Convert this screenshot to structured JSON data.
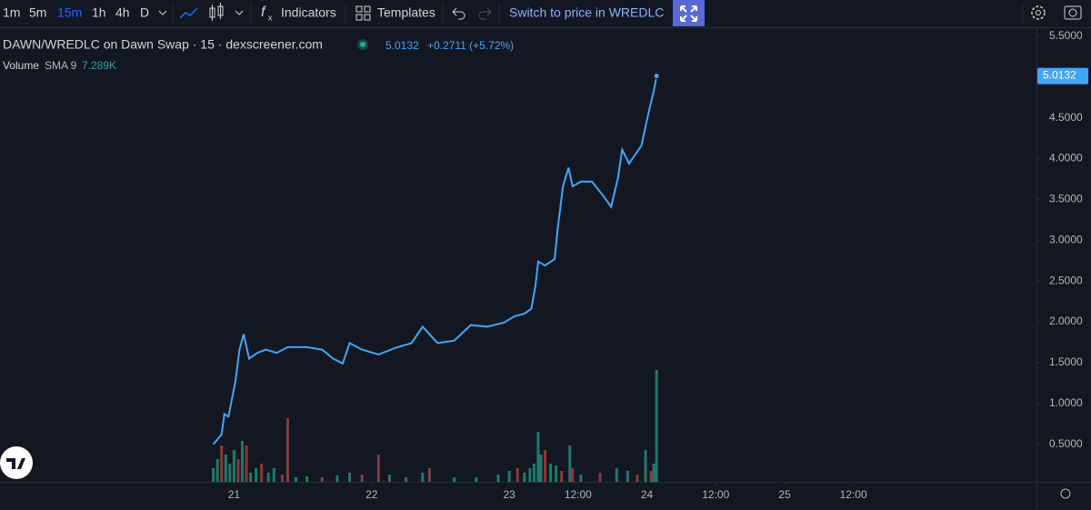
{
  "toolbar": {
    "intervals": [
      "1m",
      "5m",
      "15m",
      "1h",
      "4h",
      "D"
    ],
    "indicators": "Indicators",
    "templates": "Templates",
    "switch": "Switch to price in WREDLC"
  },
  "chart_data": {
    "type": "line",
    "title": "DAWN/WREDLC on Dawn Swap · 15 · dexscreener.com",
    "change": "+0.2711 (+5.72%)",
    "volume_indicator": "SMA 9",
    "volume_sma_label": "7.289K",
    "xlim": [
      19.3,
      26.83
    ],
    "xticks": [
      21,
      22,
      23,
      {
        "value": 23.5,
        "label": "12:00"
      },
      24,
      {
        "value": 24.5,
        "label": "12:00"
      },
      25,
      {
        "value": 25.5,
        "label": "12:00"
      }
    ],
    "ylim": [
      0.04,
      5.61
    ],
    "yticks": [
      {
        "value": 0.5,
        "label": "0.5000"
      },
      {
        "value": 1,
        "label": "1.0000"
      },
      {
        "value": 1.5,
        "label": "1.5000"
      },
      {
        "value": 2,
        "label": "2.0000"
      },
      {
        "value": 2.5,
        "label": "2.5000"
      },
      {
        "value": 3,
        "label": "3.0000"
      },
      {
        "value": 3.5,
        "label": "3.5000"
      },
      {
        "value": 4,
        "label": "4.0000"
      },
      {
        "value": 4.5,
        "label": "4.5000"
      },
      {
        "value": 5,
        "label": "5.0000"
      },
      {
        "value": 5.5,
        "label": "5.5000"
      }
    ],
    "y2lim": [
      0,
      120
    ],
    "grid": false,
    "series": [
      {
        "color": "#42a5f5",
        "x": [
          20.85,
          20.91,
          20.93,
          20.96,
          21.01,
          21.04,
          21.07,
          21.11,
          21.17,
          21.23,
          21.31,
          21.39,
          21.53,
          21.64,
          21.72,
          21.79,
          21.84,
          21.93,
          22.05,
          22.17,
          22.29,
          22.37,
          22.48,
          22.6,
          22.72,
          22.84,
          22.96,
          23.04,
          23.11,
          23.16,
          23.19,
          23.21,
          23.26,
          23.33,
          23.35,
          23.39,
          23.43,
          23.46,
          23.52,
          23.6,
          23.68,
          23.74,
          23.79,
          23.82,
          23.87,
          23.96,
          24.01,
          24.05,
          24.07
        ],
        "values": [
          0.5,
          0.62,
          0.87,
          0.84,
          1.27,
          1.66,
          1.85,
          1.55,
          1.62,
          1.66,
          1.62,
          1.69,
          1.69,
          1.66,
          1.55,
          1.49,
          1.74,
          1.66,
          1.6,
          1.68,
          1.74,
          1.94,
          1.74,
          1.77,
          1.96,
          1.94,
          1.99,
          2.07,
          2.1,
          2.16,
          2.44,
          2.74,
          2.69,
          2.77,
          3.11,
          3.66,
          3.89,
          3.66,
          3.72,
          3.72,
          3.55,
          3.41,
          3.77,
          4.11,
          3.94,
          4.16,
          4.55,
          4.83,
          5.0132
        ]
      },
      {
        "name": "Volume",
        "axis": "y2",
        "x": [
          20.85,
          20.88,
          20.91,
          20.94,
          20.97,
          21.0,
          21.03,
          21.06,
          21.09,
          21.12,
          21.16,
          21.2,
          21.25,
          21.29,
          21.35,
          21.39,
          21.45,
          21.53,
          21.64,
          21.75,
          21.84,
          21.93,
          22.05,
          22.13,
          22.25,
          22.37,
          22.42,
          22.6,
          22.76,
          22.92,
          23.0,
          23.06,
          23.11,
          23.15,
          23.18,
          23.21,
          23.23,
          23.26,
          23.3,
          23.34,
          23.38,
          23.44,
          23.46,
          23.52,
          23.66,
          23.78,
          23.86,
          23.93,
          23.99,
          24.03,
          24.05,
          24.07
        ],
        "values": [
          7.5,
          12.5,
          20,
          15,
          10,
          17.5,
          12.5,
          22.5,
          20,
          5,
          7.5,
          10,
          5,
          7.5,
          4,
          35,
          2.5,
          3,
          2.5,
          3.5,
          5,
          4,
          15,
          4,
          2.5,
          5,
          7.5,
          2.5,
          2.5,
          4,
          6,
          7.5,
          5,
          7.5,
          10,
          27.5,
          15,
          17.5,
          10,
          9,
          6,
          20,
          7.5,
          4,
          5,
          7.5,
          6,
          4,
          17.5,
          6,
          10,
          61.5
        ],
        "colors": [
          "#1f7a6e",
          "#1f7a6e",
          "#8b3a3a",
          "#1f7a6e",
          "#1f7a6e",
          "#1f7a6e",
          "#8b3a3a",
          "#1f7a6e",
          "#8b3a3a",
          "#1f7a6e",
          "#1f7a6e",
          "#8b3a3a",
          "#1f7a6e",
          "#1f7a6e",
          "#8b3a3a",
          "#8b3a3a",
          "#1f7a6e",
          "#1f7a6e",
          "#8b3a3a",
          "#1f7a6e",
          "#1f7a6e",
          "#8b3a3a",
          "#8b3a3a",
          "#1f7a6e",
          "#1f7a6e",
          "#1f7a6e",
          "#8b3a3a",
          "#1f7a6e",
          "#1f7a6e",
          "#1f7a6e",
          "#1f7a6e",
          "#8b3a3a",
          "#1f7a6e",
          "#1f7a6e",
          "#1f7a6e",
          "#1f7a6e",
          "#1f7a6e",
          "#8b3a3a",
          "#1f7a6e",
          "#1f7a6e",
          "#8b3a3a",
          "#1f7a6e",
          "#8b3a3a",
          "#1f7a6e",
          "#8b3a3a",
          "#1f7a6e",
          "#1f7a6e",
          "#8b3a3a",
          "#1f7a6e",
          "#8b3a3a",
          "#1f7a6e",
          "#1f7a6e"
        ]
      }
    ]
  }
}
